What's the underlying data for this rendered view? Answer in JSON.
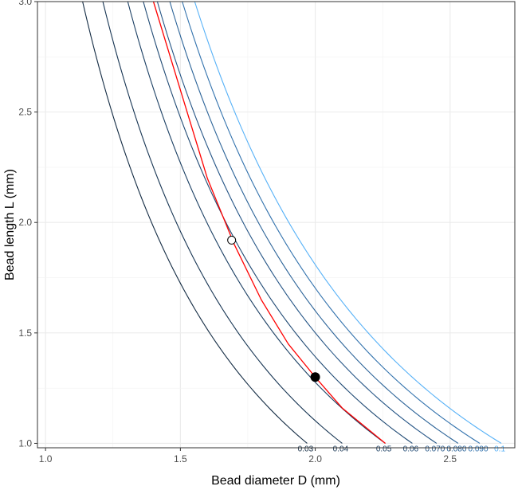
{
  "chart_data": {
    "type": "line",
    "title": "",
    "xlabel": "Bead diameter D (mm)",
    "ylabel": "Bead length L (mm)",
    "xlim": [
      0.97,
      2.74
    ],
    "ylim": [
      0.98,
      3.0
    ],
    "x_ticks": [
      1.0,
      1.5,
      2.0,
      2.5
    ],
    "x_tick_labels": [
      "1.0",
      "1.5",
      "2.0",
      "2.5"
    ],
    "y_ticks": [
      1.0,
      1.5,
      2.0,
      2.5,
      3.0
    ],
    "y_tick_labels": [
      "1.0",
      "1.5",
      "2.0",
      "2.5",
      "3.0"
    ],
    "grid": true,
    "contour_model": "L proportional to D^-2 (constant bead volume)",
    "contours": [
      {
        "label": "0.03",
        "color": "#132b43",
        "d_at_L1": 1.97
      },
      {
        "label": "0.04",
        "color": "#173553",
        "d_at_L1": 2.1
      },
      {
        "label": "0.05",
        "color": "#1b3f63",
        "d_at_L1": 2.26
      },
      {
        "label": "0.06",
        "color": "#204a74",
        "d_at_L1": 2.36
      },
      {
        "label": "0.070",
        "color": "#255586",
        "d_at_L1": 2.45
      },
      {
        "label": "0.080",
        "color": "#2b6398",
        "d_at_L1": 2.53
      },
      {
        "label": "0.090",
        "color": "#3272ad",
        "d_at_L1": 2.61
      },
      {
        "label": "0.1",
        "color": "#56b1f7",
        "d_at_L1": 2.69
      }
    ],
    "red_curve": {
      "color": "#ff0000",
      "points": [
        [
          1.4,
          3.0
        ],
        [
          1.5,
          2.6
        ],
        [
          1.6,
          2.2
        ],
        [
          1.7,
          1.9
        ],
        [
          1.8,
          1.65
        ],
        [
          1.9,
          1.45
        ],
        [
          2.0,
          1.3
        ],
        [
          2.1,
          1.16
        ],
        [
          2.26,
          1.0
        ]
      ]
    },
    "markers": [
      {
        "x": 1.69,
        "y": 1.92,
        "style": "open-circle"
      },
      {
        "x": 2.0,
        "y": 1.3,
        "style": "filled-circle"
      }
    ]
  }
}
